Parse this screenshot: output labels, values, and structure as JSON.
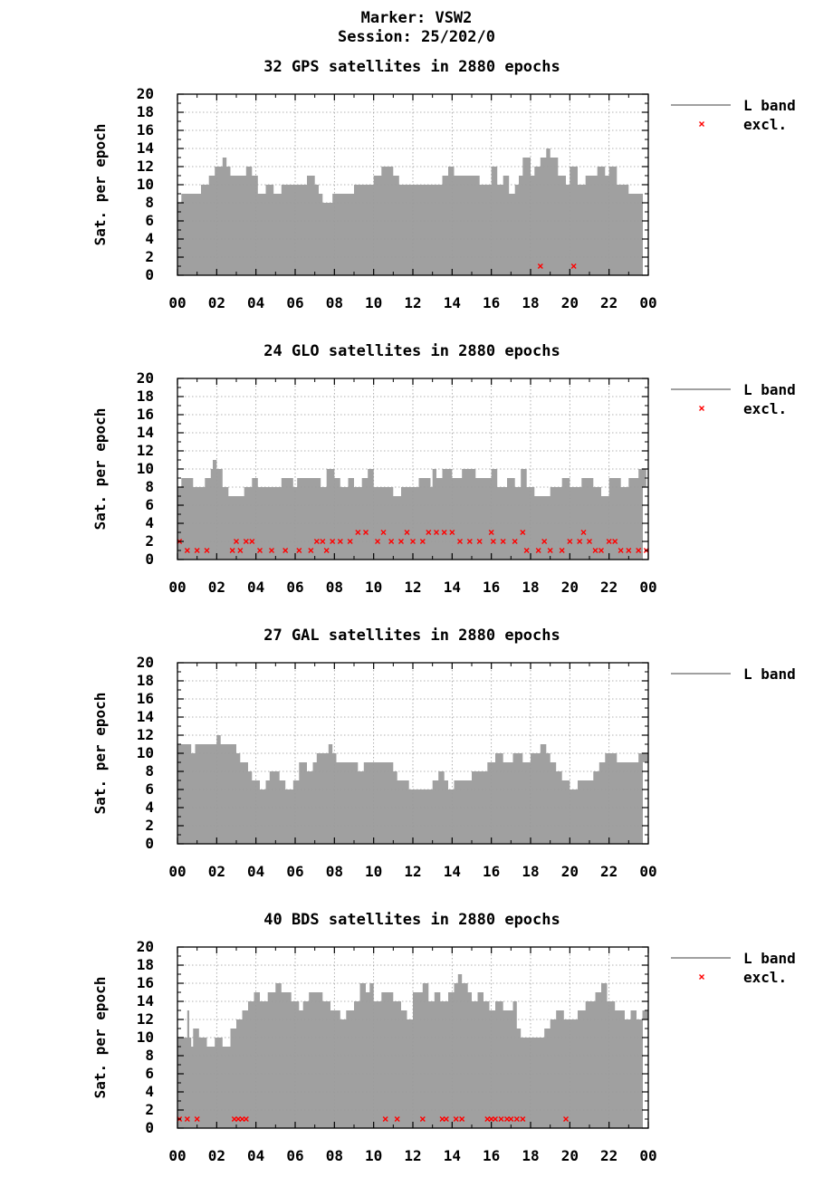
{
  "header": {
    "marker": "Marker: VSW2",
    "session": "Session: 25/202/0"
  },
  "colors": {
    "fill": "#a0a0a0",
    "excluded": "#ff0000",
    "grid": "#9a9a9a",
    "axis": "#000000"
  },
  "chart_data": [
    {
      "type": "area",
      "title": "32 GPS satellites in 2880 epochs",
      "ylabel": "Sat. per epoch",
      "xlabel": "",
      "ylim": [
        0,
        20
      ],
      "xlim": [
        0,
        24
      ],
      "yticks": [
        "0",
        "2",
        "4",
        "6",
        "8",
        "10",
        "12",
        "14",
        "16",
        "18",
        "20"
      ],
      "xticks": [
        "00",
        "02",
        "04",
        "06",
        "08",
        "10",
        "12",
        "14",
        "16",
        "18",
        "20",
        "22",
        "00"
      ],
      "legend": [
        "L band",
        "excl."
      ],
      "series": [
        {
          "name": "L band",
          "x": [
            0,
            0.2,
            1.2,
            1.6,
            1.9,
            2.0,
            2.3,
            2.5,
            2.7,
            3.0,
            3.5,
            3.8,
            4.1,
            4.5,
            4.9,
            5.3,
            5.5,
            6.6,
            7.0,
            7.2,
            7.4,
            7.9,
            8.0,
            9.0,
            10.0,
            10.4,
            10.6,
            11.0,
            11.3,
            12.0,
            13.0,
            13.2,
            13.5,
            13.8,
            14.1,
            15.0,
            15.4,
            16.0,
            16.3,
            16.6,
            16.9,
            17.2,
            17.4,
            17.6,
            18.0,
            18.2,
            18.5,
            18.8,
            19.0,
            19.4,
            19.8,
            20.0,
            20.4,
            20.8,
            21.0,
            21.4,
            21.8,
            22.0,
            22.4,
            22.8,
            23.0,
            23.5,
            24.0
          ],
          "values": [
            8,
            9,
            10,
            11,
            12,
            12,
            13,
            12,
            11,
            11,
            12,
            11,
            9,
            10,
            9,
            10,
            10,
            11,
            10,
            9,
            8,
            9,
            9,
            10,
            11,
            12,
            12,
            11,
            10,
            10,
            10,
            10,
            11,
            12,
            11,
            11,
            10,
            12,
            10,
            11,
            9,
            10,
            11,
            13,
            11,
            12,
            13,
            14,
            13,
            11,
            10,
            12,
            10,
            11,
            11,
            12,
            11,
            12,
            10,
            10,
            9,
            9,
            9
          ]
        },
        {
          "name": "excl.",
          "points": [
            [
              18.5,
              1
            ],
            [
              20.2,
              1
            ]
          ]
        }
      ]
    },
    {
      "type": "area",
      "title": "24 GLO satellites in 2880 epochs",
      "ylabel": "Sat. per epoch",
      "xlabel": "",
      "ylim": [
        0,
        20
      ],
      "xlim": [
        0,
        24
      ],
      "yticks": [
        "0",
        "2",
        "4",
        "6",
        "8",
        "10",
        "12",
        "14",
        "16",
        "18",
        "20"
      ],
      "xticks": [
        "00",
        "02",
        "04",
        "06",
        "08",
        "10",
        "12",
        "14",
        "16",
        "18",
        "20",
        "22",
        "00"
      ],
      "legend": [
        "L band",
        "excl."
      ],
      "series": [
        {
          "name": "L band",
          "x": [
            0,
            0.2,
            0.8,
            1.4,
            1.7,
            1.8,
            2.0,
            2.3,
            2.6,
            3.4,
            3.8,
            4.1,
            5.3,
            5.9,
            6.1,
            7.0,
            7.3,
            7.6,
            8.0,
            8.3,
            8.7,
            9.0,
            9.4,
            9.7,
            10.0,
            10.5,
            11.0,
            11.4,
            11.9,
            12.3,
            12.9,
            13.0,
            13.2,
            13.5,
            14.0,
            14.5,
            15.2,
            15.5,
            16.0,
            16.3,
            16.8,
            17.2,
            17.5,
            17.8,
            18.2,
            19.0,
            19.6,
            20.0,
            20.6,
            20.9,
            21.2,
            21.6,
            22.0,
            22.6,
            23.0,
            23.5,
            23.9,
            24.0
          ],
          "values": [
            8,
            9,
            8,
            9,
            10,
            11,
            10,
            8,
            7,
            8,
            9,
            8,
            9,
            8,
            9,
            9,
            8,
            10,
            9,
            8,
            9,
            8,
            9,
            10,
            8,
            8,
            7,
            8,
            8,
            9,
            8,
            10,
            9,
            10,
            9,
            10,
            9,
            9,
            10,
            8,
            9,
            8,
            10,
            8,
            7,
            8,
            9,
            8,
            9,
            9,
            8,
            7,
            9,
            8,
            9,
            10,
            8,
            8
          ]
        },
        {
          "name": "excl.",
          "points": [
            [
              0.1,
              2
            ],
            [
              0.5,
              1
            ],
            [
              1.0,
              1
            ],
            [
              1.5,
              1
            ],
            [
              2.8,
              1
            ],
            [
              3.0,
              2
            ],
            [
              3.2,
              1
            ],
            [
              3.5,
              2
            ],
            [
              3.8,
              2
            ],
            [
              4.2,
              1
            ],
            [
              4.8,
              1
            ],
            [
              5.5,
              1
            ],
            [
              6.2,
              1
            ],
            [
              6.8,
              1
            ],
            [
              7.1,
              2
            ],
            [
              7.4,
              2
            ],
            [
              7.6,
              1
            ],
            [
              7.9,
              2
            ],
            [
              8.3,
              2
            ],
            [
              8.8,
              2
            ],
            [
              9.2,
              3
            ],
            [
              9.6,
              3
            ],
            [
              10.2,
              2
            ],
            [
              10.5,
              3
            ],
            [
              10.9,
              2
            ],
            [
              11.4,
              2
            ],
            [
              11.7,
              3
            ],
            [
              12.0,
              2
            ],
            [
              12.5,
              2
            ],
            [
              12.8,
              3
            ],
            [
              13.2,
              3
            ],
            [
              13.6,
              3
            ],
            [
              14.0,
              3
            ],
            [
              14.4,
              2
            ],
            [
              14.9,
              2
            ],
            [
              15.4,
              2
            ],
            [
              16.0,
              3
            ],
            [
              16.1,
              2
            ],
            [
              16.6,
              2
            ],
            [
              17.2,
              2
            ],
            [
              17.6,
              3
            ],
            [
              17.8,
              1
            ],
            [
              18.4,
              1
            ],
            [
              18.7,
              2
            ],
            [
              19.0,
              1
            ],
            [
              19.6,
              1
            ],
            [
              20.0,
              2
            ],
            [
              20.5,
              2
            ],
            [
              20.7,
              3
            ],
            [
              21.0,
              2
            ],
            [
              21.3,
              1
            ],
            [
              21.6,
              1
            ],
            [
              22.0,
              2
            ],
            [
              22.3,
              2
            ],
            [
              22.6,
              1
            ],
            [
              23.0,
              1
            ],
            [
              23.5,
              1
            ],
            [
              23.9,
              1
            ]
          ]
        }
      ]
    },
    {
      "type": "area",
      "title": "27 GAL satellites in 2880 epochs",
      "ylabel": "Sat. per epoch",
      "xlabel": "",
      "ylim": [
        0,
        20
      ],
      "xlim": [
        0,
        24
      ],
      "yticks": [
        "0",
        "2",
        "4",
        "6",
        "8",
        "10",
        "12",
        "14",
        "16",
        "18",
        "20"
      ],
      "xticks": [
        "00",
        "02",
        "04",
        "06",
        "08",
        "10",
        "12",
        "14",
        "16",
        "18",
        "20",
        "22",
        "00"
      ],
      "legend": [
        "L band"
      ],
      "series": [
        {
          "name": "L band",
          "x": [
            0,
            0.7,
            0.9,
            2.0,
            2.2,
            2.5,
            3.0,
            3.2,
            3.6,
            3.8,
            4.2,
            4.5,
            4.7,
            5.2,
            5.5,
            5.9,
            6.2,
            6.6,
            6.9,
            7.1,
            7.4,
            7.7,
            7.9,
            8.1,
            8.3,
            9.2,
            9.5,
            10.0,
            10.5,
            11.0,
            11.2,
            11.8,
            12.6,
            13.0,
            13.3,
            13.6,
            13.8,
            14.1,
            15.0,
            15.8,
            16.2,
            16.6,
            17.1,
            17.6,
            18.0,
            18.5,
            18.8,
            19.0,
            19.3,
            19.6,
            20.0,
            20.4,
            21.2,
            21.5,
            21.8,
            22.4,
            22.9,
            23.5,
            24.0
          ],
          "values": [
            11,
            10,
            11,
            12,
            11,
            11,
            10,
            9,
            8,
            7,
            6,
            7,
            8,
            7,
            6,
            7,
            9,
            8,
            9,
            10,
            10,
            11,
            10,
            9,
            9,
            8,
            9,
            9,
            9,
            8,
            7,
            6,
            6,
            7,
            8,
            7,
            6,
            7,
            8,
            9,
            10,
            9,
            10,
            9,
            10,
            11,
            10,
            9,
            8,
            7,
            6,
            7,
            8,
            9,
            10,
            9,
            9,
            10,
            9
          ]
        }
      ]
    },
    {
      "type": "area",
      "title": "40 BDS satellites in 2880 epochs",
      "ylabel": "Sat. per epoch",
      "xlabel": "",
      "ylim": [
        0,
        20
      ],
      "xlim": [
        0,
        24
      ],
      "yticks": [
        "0",
        "2",
        "4",
        "6",
        "8",
        "10",
        "12",
        "14",
        "16",
        "18",
        "20"
      ],
      "xticks": [
        "00",
        "02",
        "04",
        "06",
        "08",
        "10",
        "12",
        "14",
        "16",
        "18",
        "20",
        "22",
        "00"
      ],
      "legend": [
        "L band",
        "excl."
      ],
      "series": [
        {
          "name": "L band",
          "x": [
            0,
            0.5,
            0.6,
            0.7,
            0.8,
            1.1,
            1.5,
            1.9,
            2.3,
            2.7,
            3.0,
            3.3,
            3.6,
            3.9,
            4.2,
            4.6,
            5.0,
            5.3,
            5.8,
            6.2,
            6.4,
            6.7,
            7.0,
            7.4,
            7.8,
            8.3,
            8.6,
            9.0,
            9.3,
            9.6,
            9.8,
            10.0,
            10.4,
            11.0,
            11.4,
            11.7,
            12.0,
            12.5,
            12.8,
            13.1,
            13.4,
            13.8,
            14.1,
            14.3,
            14.5,
            14.8,
            15.0,
            15.3,
            15.6,
            15.9,
            16.2,
            16.6,
            17.1,
            17.3,
            17.5,
            18.0,
            18.4,
            18.7,
            19.0,
            19.3,
            19.7,
            20.0,
            20.4,
            20.8,
            21.3,
            21.6,
            21.9,
            22.3,
            22.8,
            23.1,
            23.4,
            23.7,
            24.0
          ],
          "values": [
            10,
            13,
            10,
            9,
            11,
            10,
            9,
            10,
            9,
            11,
            12,
            13,
            14,
            15,
            14,
            15,
            16,
            15,
            14,
            13,
            14,
            15,
            15,
            14,
            13,
            12,
            13,
            14,
            16,
            15,
            16,
            14,
            15,
            14,
            13,
            12,
            15,
            16,
            14,
            15,
            14,
            15,
            16,
            17,
            16,
            15,
            14,
            15,
            14,
            13,
            14,
            13,
            14,
            11,
            10,
            10,
            10,
            11,
            12,
            13,
            12,
            12,
            13,
            14,
            15,
            16,
            14,
            13,
            12,
            13,
            12,
            13,
            12
          ]
        },
        {
          "name": "excl.",
          "points": [
            [
              0.1,
              1
            ],
            [
              0.5,
              1
            ],
            [
              1.0,
              1
            ],
            [
              2.9,
              1
            ],
            [
              3.1,
              1
            ],
            [
              3.3,
              1
            ],
            [
              3.5,
              1
            ],
            [
              10.6,
              1
            ],
            [
              11.2,
              1
            ],
            [
              12.5,
              1
            ],
            [
              13.5,
              1
            ],
            [
              13.7,
              1
            ],
            [
              14.2,
              1
            ],
            [
              14.5,
              1
            ],
            [
              15.8,
              1
            ],
            [
              16.0,
              1
            ],
            [
              16.2,
              1
            ],
            [
              16.5,
              1
            ],
            [
              16.8,
              1
            ],
            [
              17.0,
              1
            ],
            [
              17.3,
              1
            ],
            [
              17.6,
              1
            ],
            [
              19.8,
              1
            ]
          ]
        }
      ]
    }
  ]
}
